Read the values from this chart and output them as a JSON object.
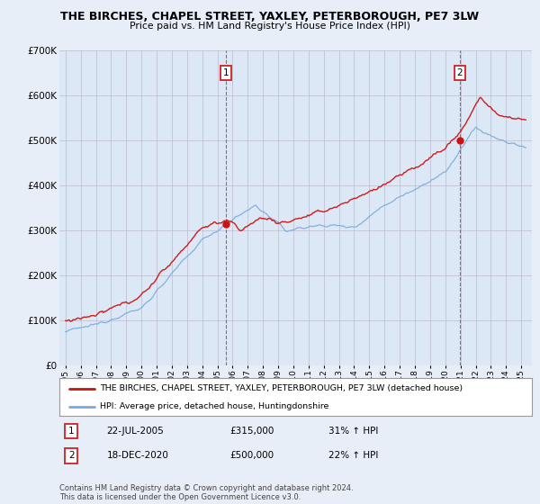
{
  "title": "THE BIRCHES, CHAPEL STREET, YAXLEY, PETERBOROUGH, PE7 3LW",
  "subtitle": "Price paid vs. HM Land Registry's House Price Index (HPI)",
  "ylim": [
    0,
    700000
  ],
  "yticks": [
    0,
    100000,
    200000,
    300000,
    400000,
    500000,
    600000,
    700000
  ],
  "ytick_labels": [
    "£0",
    "£100K",
    "£200K",
    "£300K",
    "£400K",
    "£500K",
    "£600K",
    "£700K"
  ],
  "background_color": "#e8eef8",
  "plot_bg_color": "#dce8f5",
  "hpi_color": "#7aaadd",
  "price_color": "#cc1111",
  "legend_label_price": "THE BIRCHES, CHAPEL STREET, YAXLEY, PETERBOROUGH, PE7 3LW (detached house)",
  "legend_label_hpi": "HPI: Average price, detached house, Huntingdonshire",
  "annotation1_date": "22-JUL-2005",
  "annotation1_price": "£315,000",
  "annotation1_hpi": "31% ↑ HPI",
  "annotation2_date": "18-DEC-2020",
  "annotation2_price": "£500,000",
  "annotation2_hpi": "22% ↑ HPI",
  "footer": "Contains HM Land Registry data © Crown copyright and database right 2024.\nThis data is licensed under the Open Government Licence v3.0.",
  "t1": 2005.55,
  "t2": 2020.96,
  "p1_val": 315000,
  "p2_val": 500000
}
